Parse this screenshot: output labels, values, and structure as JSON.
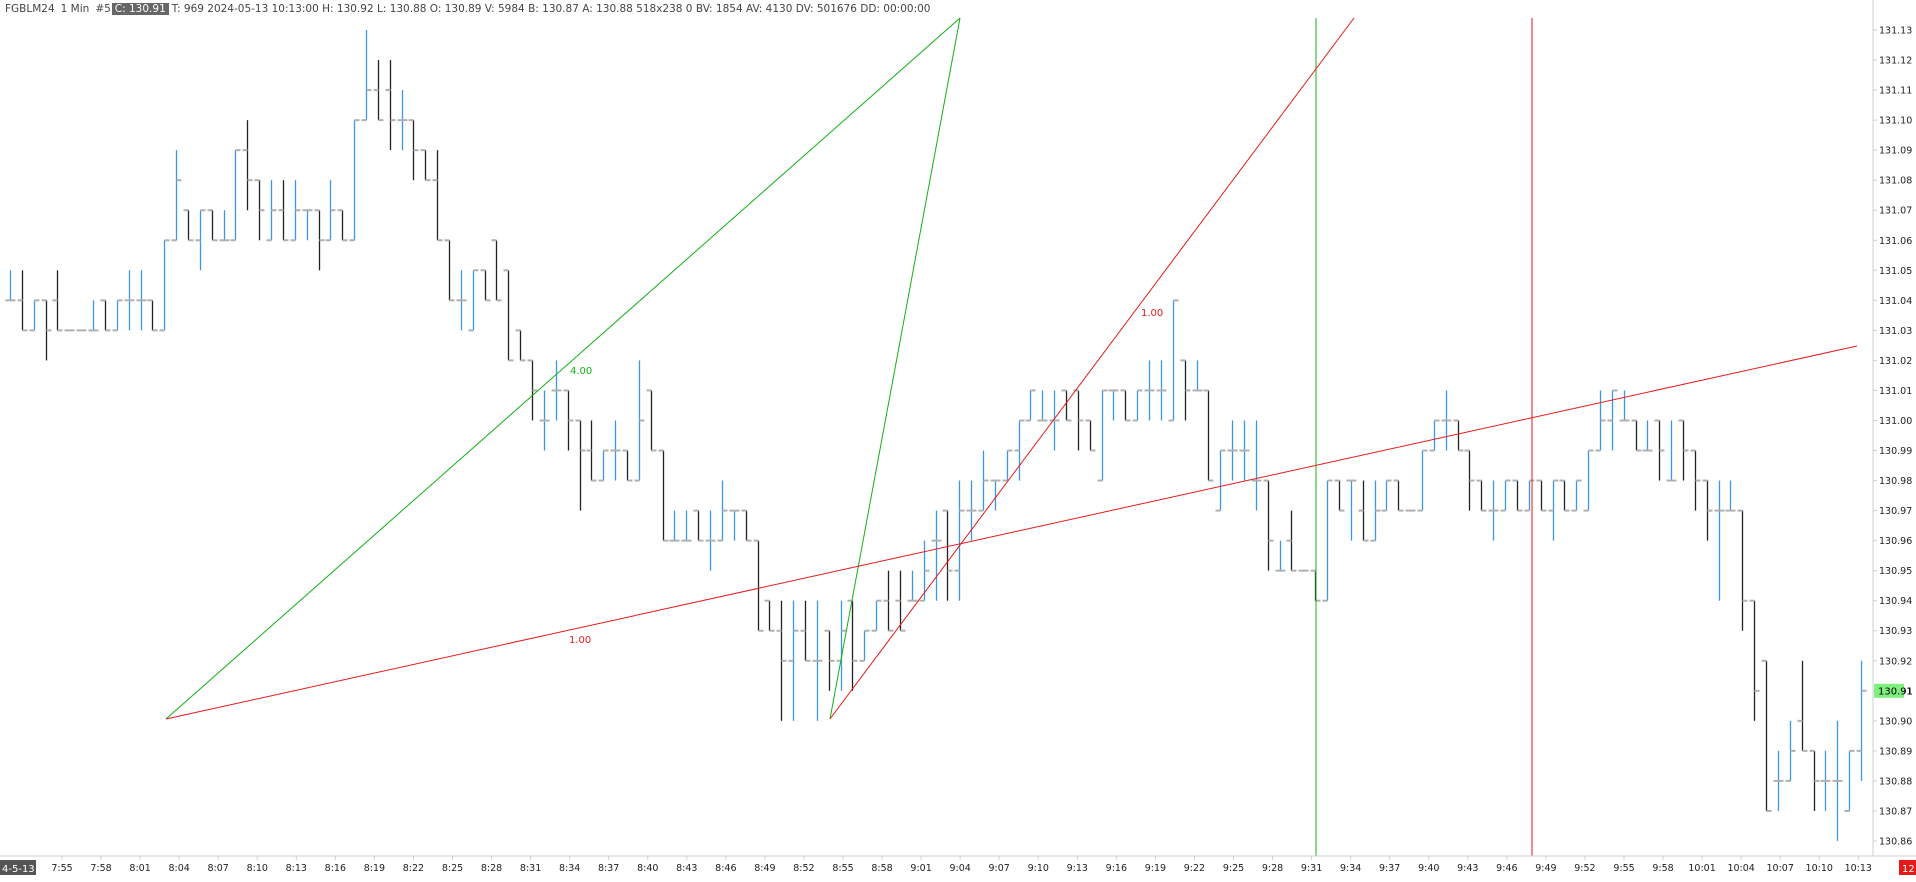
{
  "header": {
    "symbol": "FGBLM24",
    "interval": "1 Min",
    "bar_index": "#5",
    "close_badge": "C: 130.91",
    "details": "T: 969 2024-05-13 10:13:00 H: 130.92 L: 130.88 O: 130.89 V: 5984 B: 130.87 A: 130.88 518x238 0 BV: 1854 AV: 4130 DV: 501676 DD: 00:00:00"
  },
  "date_label": "4-5-13",
  "corner_badge": "12",
  "colors": {
    "up_bar": "#3a96e8",
    "down_bar": "#222222",
    "tick": "#b0b0b0",
    "green_line": "#16b016",
    "red_line": "#e41a1a",
    "last_price_badge": "#7ef07e",
    "axis": "#cfcfcf"
  },
  "chart_data": {
    "type": "ohlc",
    "y_axis": {
      "min": 130.855,
      "max": 131.134,
      "ticks": [
        "131.13",
        "131.12",
        "131.11",
        "131.10",
        "131.09",
        "131.08",
        "131.07",
        "131.06",
        "131.05",
        "131.04",
        "131.03",
        "131.02",
        "131.01",
        "131.00",
        "130.99",
        "130.98",
        "130.97",
        "130.96",
        "130.95",
        "130.94",
        "130.93",
        "130.92",
        "130.91",
        "130.90",
        "130.89",
        "130.88",
        "130.87",
        "130.86"
      ],
      "last_price": "130.91"
    },
    "x_axis": {
      "labels": [
        "7:55",
        "7:58",
        "8:01",
        "8:04",
        "8:07",
        "8:10",
        "8:13",
        "8:16",
        "8:19",
        "8:22",
        "8:25",
        "8:28",
        "8:31",
        "8:34",
        "8:37",
        "8:40",
        "8:43",
        "8:46",
        "8:49",
        "8:52",
        "8:55",
        "8:58",
        "9:01",
        "9:04",
        "9:07",
        "9:10",
        "9:13",
        "9:16",
        "9:19",
        "9:22",
        "9:25",
        "9:28",
        "9:31",
        "9:34",
        "9:37",
        "9:40",
        "9:43",
        "9:46",
        "9:49",
        "9:52",
        "9:55",
        "9:58",
        "10:01",
        "10:04",
        "10:07",
        "10:10",
        "10:13"
      ]
    },
    "bars": [
      [
        131.04,
        131.05,
        131.04,
        131.04
      ],
      [
        131.04,
        131.05,
        131.03,
        131.03
      ],
      [
        131.03,
        131.04,
        131.03,
        131.04
      ],
      [
        131.04,
        131.04,
        131.02,
        131.03
      ],
      [
        131.04,
        131.05,
        131.03,
        131.03
      ],
      [
        131.03,
        131.03,
        131.03,
        131.03
      ],
      [
        131.03,
        131.03,
        131.03,
        131.03
      ],
      [
        131.03,
        131.04,
        131.03,
        131.03
      ],
      [
        131.04,
        131.04,
        131.03,
        131.03
      ],
      [
        131.03,
        131.04,
        131.03,
        131.04
      ],
      [
        131.04,
        131.05,
        131.03,
        131.04
      ],
      [
        131.04,
        131.05,
        131.03,
        131.04
      ],
      [
        131.04,
        131.04,
        131.03,
        131.03
      ],
      [
        131.03,
        131.06,
        131.03,
        131.06
      ],
      [
        131.06,
        131.09,
        131.06,
        131.08
      ],
      [
        131.07,
        131.07,
        131.06,
        131.06
      ],
      [
        131.06,
        131.07,
        131.05,
        131.07
      ],
      [
        131.07,
        131.07,
        131.06,
        131.06
      ],
      [
        131.06,
        131.07,
        131.06,
        131.06
      ],
      [
        131.06,
        131.09,
        131.06,
        131.09
      ],
      [
        131.09,
        131.1,
        131.07,
        131.08
      ],
      [
        131.08,
        131.08,
        131.06,
        131.07
      ],
      [
        131.06,
        131.08,
        131.06,
        131.07
      ],
      [
        131.07,
        131.08,
        131.06,
        131.06
      ],
      [
        131.06,
        131.08,
        131.06,
        131.07
      ],
      [
        131.07,
        131.07,
        131.06,
        131.07
      ],
      [
        131.07,
        131.07,
        131.05,
        131.06
      ],
      [
        131.06,
        131.08,
        131.06,
        131.07
      ],
      [
        131.07,
        131.07,
        131.06,
        131.06
      ],
      [
        131.06,
        131.1,
        131.06,
        131.1
      ],
      [
        131.1,
        131.13,
        131.1,
        131.11
      ],
      [
        131.11,
        131.12,
        131.1,
        131.1
      ],
      [
        131.11,
        131.12,
        131.09,
        131.1
      ],
      [
        131.1,
        131.11,
        131.09,
        131.1
      ],
      [
        131.1,
        131.1,
        131.08,
        131.09
      ],
      [
        131.09,
        131.09,
        131.08,
        131.08
      ],
      [
        131.08,
        131.09,
        131.06,
        131.06
      ],
      [
        131.06,
        131.06,
        131.04,
        131.04
      ],
      [
        131.04,
        131.05,
        131.03,
        131.04
      ],
      [
        131.03,
        131.05,
        131.03,
        131.05
      ],
      [
        131.05,
        131.05,
        131.04,
        131.04
      ],
      [
        131.06,
        131.06,
        131.04,
        131.04
      ],
      [
        131.05,
        131.05,
        131.02,
        131.02
      ],
      [
        131.03,
        131.03,
        131.02,
        131.02
      ],
      [
        131.02,
        131.02,
        131.0,
        131.01
      ],
      [
        131.0,
        131.01,
        130.99,
        131.0
      ],
      [
        131.01,
        131.02,
        131.0,
        131.01
      ],
      [
        131.01,
        131.01,
        130.99,
        131.0
      ],
      [
        131.0,
        131.0,
        130.97,
        130.99
      ],
      [
        130.99,
        131.0,
        130.98,
        130.98
      ],
      [
        130.98,
        130.99,
        130.98,
        130.99
      ],
      [
        130.99,
        131.0,
        130.98,
        130.99
      ],
      [
        130.99,
        130.99,
        130.98,
        130.98
      ],
      [
        130.98,
        131.02,
        130.98,
        131.0
      ],
      [
        131.01,
        131.01,
        130.99,
        130.99
      ],
      [
        130.99,
        130.99,
        130.96,
        130.96
      ],
      [
        130.96,
        130.97,
        130.96,
        130.96
      ],
      [
        130.96,
        130.97,
        130.96,
        130.96
      ],
      [
        130.97,
        130.97,
        130.96,
        130.96
      ],
      [
        130.96,
        130.97,
        130.95,
        130.96
      ],
      [
        130.96,
        130.98,
        130.96,
        130.97
      ],
      [
        130.97,
        130.97,
        130.96,
        130.97
      ],
      [
        130.97,
        130.97,
        130.96,
        130.96
      ],
      [
        130.96,
        130.96,
        130.93,
        130.93
      ],
      [
        130.94,
        130.94,
        130.93,
        130.93
      ],
      [
        130.93,
        130.94,
        130.9,
        130.92
      ],
      [
        130.92,
        130.94,
        130.9,
        130.93
      ],
      [
        130.93,
        130.94,
        130.92,
        130.92
      ],
      [
        130.92,
        130.94,
        130.9,
        130.92
      ],
      [
        130.93,
        130.93,
        130.91,
        130.92
      ],
      [
        130.92,
        130.94,
        130.91,
        130.93
      ],
      [
        130.94,
        130.94,
        130.91,
        130.92
      ],
      [
        130.92,
        130.93,
        130.92,
        130.93
      ],
      [
        130.93,
        130.94,
        130.93,
        130.94
      ],
      [
        130.94,
        130.95,
        130.93,
        130.93
      ],
      [
        130.94,
        130.95,
        130.93,
        130.93
      ],
      [
        130.94,
        130.95,
        130.94,
        130.94
      ],
      [
        130.94,
        130.96,
        130.94,
        130.95
      ],
      [
        130.96,
        130.97,
        130.94,
        130.96
      ],
      [
        130.97,
        130.97,
        130.94,
        130.95
      ],
      [
        130.95,
        130.98,
        130.94,
        130.97
      ],
      [
        130.97,
        130.98,
        130.96,
        130.97
      ],
      [
        130.97,
        130.99,
        130.97,
        130.98
      ],
      [
        130.98,
        130.98,
        130.97,
        130.98
      ],
      [
        130.98,
        130.99,
        130.98,
        130.99
      ],
      [
        130.99,
        131.0,
        130.98,
        131.0
      ],
      [
        131.0,
        131.01,
        131.0,
        131.01
      ],
      [
        131.0,
        131.01,
        131.0,
        131.0
      ],
      [
        131.0,
        131.01,
        130.99,
        131.0
      ],
      [
        131.01,
        131.01,
        131.0,
        131.0
      ],
      [
        131.01,
        131.01,
        130.99,
        131.0
      ],
      [
        131.0,
        131.0,
        130.99,
        130.99
      ],
      [
        130.98,
        131.01,
        130.98,
        131.01
      ],
      [
        131.01,
        131.01,
        131.0,
        131.01
      ],
      [
        131.01,
        131.01,
        131.0,
        131.0
      ],
      [
        131.0,
        131.01,
        131.0,
        131.01
      ],
      [
        131.01,
        131.02,
        131.0,
        131.01
      ],
      [
        131.01,
        131.02,
        131.0,
        131.01
      ],
      [
        131.0,
        131.04,
        131.0,
        131.04
      ],
      [
        131.02,
        131.02,
        131.0,
        131.01
      ],
      [
        131.01,
        131.02,
        131.01,
        131.01
      ],
      [
        131.01,
        131.01,
        130.98,
        130.98
      ],
      [
        130.97,
        130.99,
        130.97,
        130.99
      ],
      [
        130.99,
        131.0,
        130.98,
        130.99
      ],
      [
        130.99,
        131.0,
        130.98,
        130.99
      ],
      [
        130.98,
        131.0,
        130.97,
        130.98
      ],
      [
        130.98,
        130.98,
        130.95,
        130.96
      ],
      [
        130.95,
        130.96,
        130.95,
        130.95
      ],
      [
        130.96,
        130.97,
        130.95,
        130.95
      ],
      [
        130.95,
        130.95,
        130.95,
        130.95
      ],
      [
        130.95,
        130.95,
        130.94,
        130.94
      ],
      [
        130.94,
        130.98,
        130.94,
        130.98
      ],
      [
        130.98,
        130.98,
        130.97,
        130.97
      ],
      [
        130.98,
        130.98,
        130.96,
        130.98
      ],
      [
        130.97,
        130.98,
        130.96,
        130.96
      ],
      [
        130.96,
        130.98,
        130.96,
        130.97
      ],
      [
        130.97,
        130.98,
        130.97,
        130.98
      ],
      [
        130.98,
        130.98,
        130.97,
        130.97
      ],
      [
        130.97,
        130.97,
        130.97,
        130.97
      ],
      [
        130.97,
        130.99,
        130.97,
        130.99
      ],
      [
        130.99,
        131.0,
        130.99,
        131.0
      ],
      [
        131.0,
        131.01,
        130.99,
        131.0
      ],
      [
        131.0,
        131.0,
        130.99,
        130.99
      ],
      [
        130.99,
        130.99,
        130.97,
        130.98
      ],
      [
        130.98,
        130.98,
        130.97,
        130.97
      ],
      [
        130.97,
        130.98,
        130.96,
        130.97
      ],
      [
        130.97,
        130.98,
        130.97,
        130.98
      ],
      [
        130.98,
        130.98,
        130.97,
        130.97
      ],
      [
        130.97,
        130.98,
        130.97,
        130.98
      ],
      [
        130.98,
        130.98,
        130.97,
        130.97
      ],
      [
        130.97,
        130.98,
        130.96,
        130.98
      ],
      [
        130.98,
        130.98,
        130.97,
        130.97
      ],
      [
        130.97,
        130.98,
        130.97,
        130.98
      ],
      [
        130.97,
        130.99,
        130.97,
        130.99
      ],
      [
        130.99,
        131.01,
        130.99,
        131.0
      ],
      [
        131.0,
        131.01,
        130.99,
        131.01
      ],
      [
        131.0,
        131.01,
        131.0,
        131.0
      ],
      [
        131.0,
        131.0,
        130.99,
        130.99
      ],
      [
        130.99,
        131.0,
        130.99,
        130.99
      ],
      [
        131.0,
        131.0,
        130.98,
        130.99
      ],
      [
        130.98,
        131.0,
        130.98,
        130.98
      ],
      [
        131.0,
        131.0,
        130.98,
        130.99
      ],
      [
        130.99,
        130.99,
        130.97,
        130.98
      ],
      [
        130.98,
        130.98,
        130.96,
        130.97
      ],
      [
        130.97,
        130.98,
        130.94,
        130.97
      ],
      [
        130.97,
        130.98,
        130.97,
        130.97
      ],
      [
        130.97,
        130.97,
        130.93,
        130.94
      ],
      [
        130.94,
        130.94,
        130.9,
        130.91
      ],
      [
        130.92,
        130.92,
        130.87,
        130.87
      ],
      [
        130.88,
        130.89,
        130.87,
        130.88
      ],
      [
        130.88,
        130.9,
        130.88,
        130.89
      ],
      [
        130.9,
        130.92,
        130.89,
        130.89
      ],
      [
        130.89,
        130.89,
        130.87,
        130.88
      ],
      [
        130.88,
        130.89,
        130.87,
        130.88
      ],
      [
        130.88,
        130.9,
        130.86,
        130.88
      ],
      [
        130.87,
        130.89,
        130.87,
        130.89
      ],
      [
        130.89,
        130.92,
        130.88,
        130.91
      ]
    ],
    "annotations": [
      {
        "label": "4.00",
        "color": "green"
      },
      {
        "label": "1.00",
        "color": "red"
      },
      {
        "label": "1.00",
        "color": "red"
      }
    ],
    "grid": false,
    "legend": "none"
  }
}
